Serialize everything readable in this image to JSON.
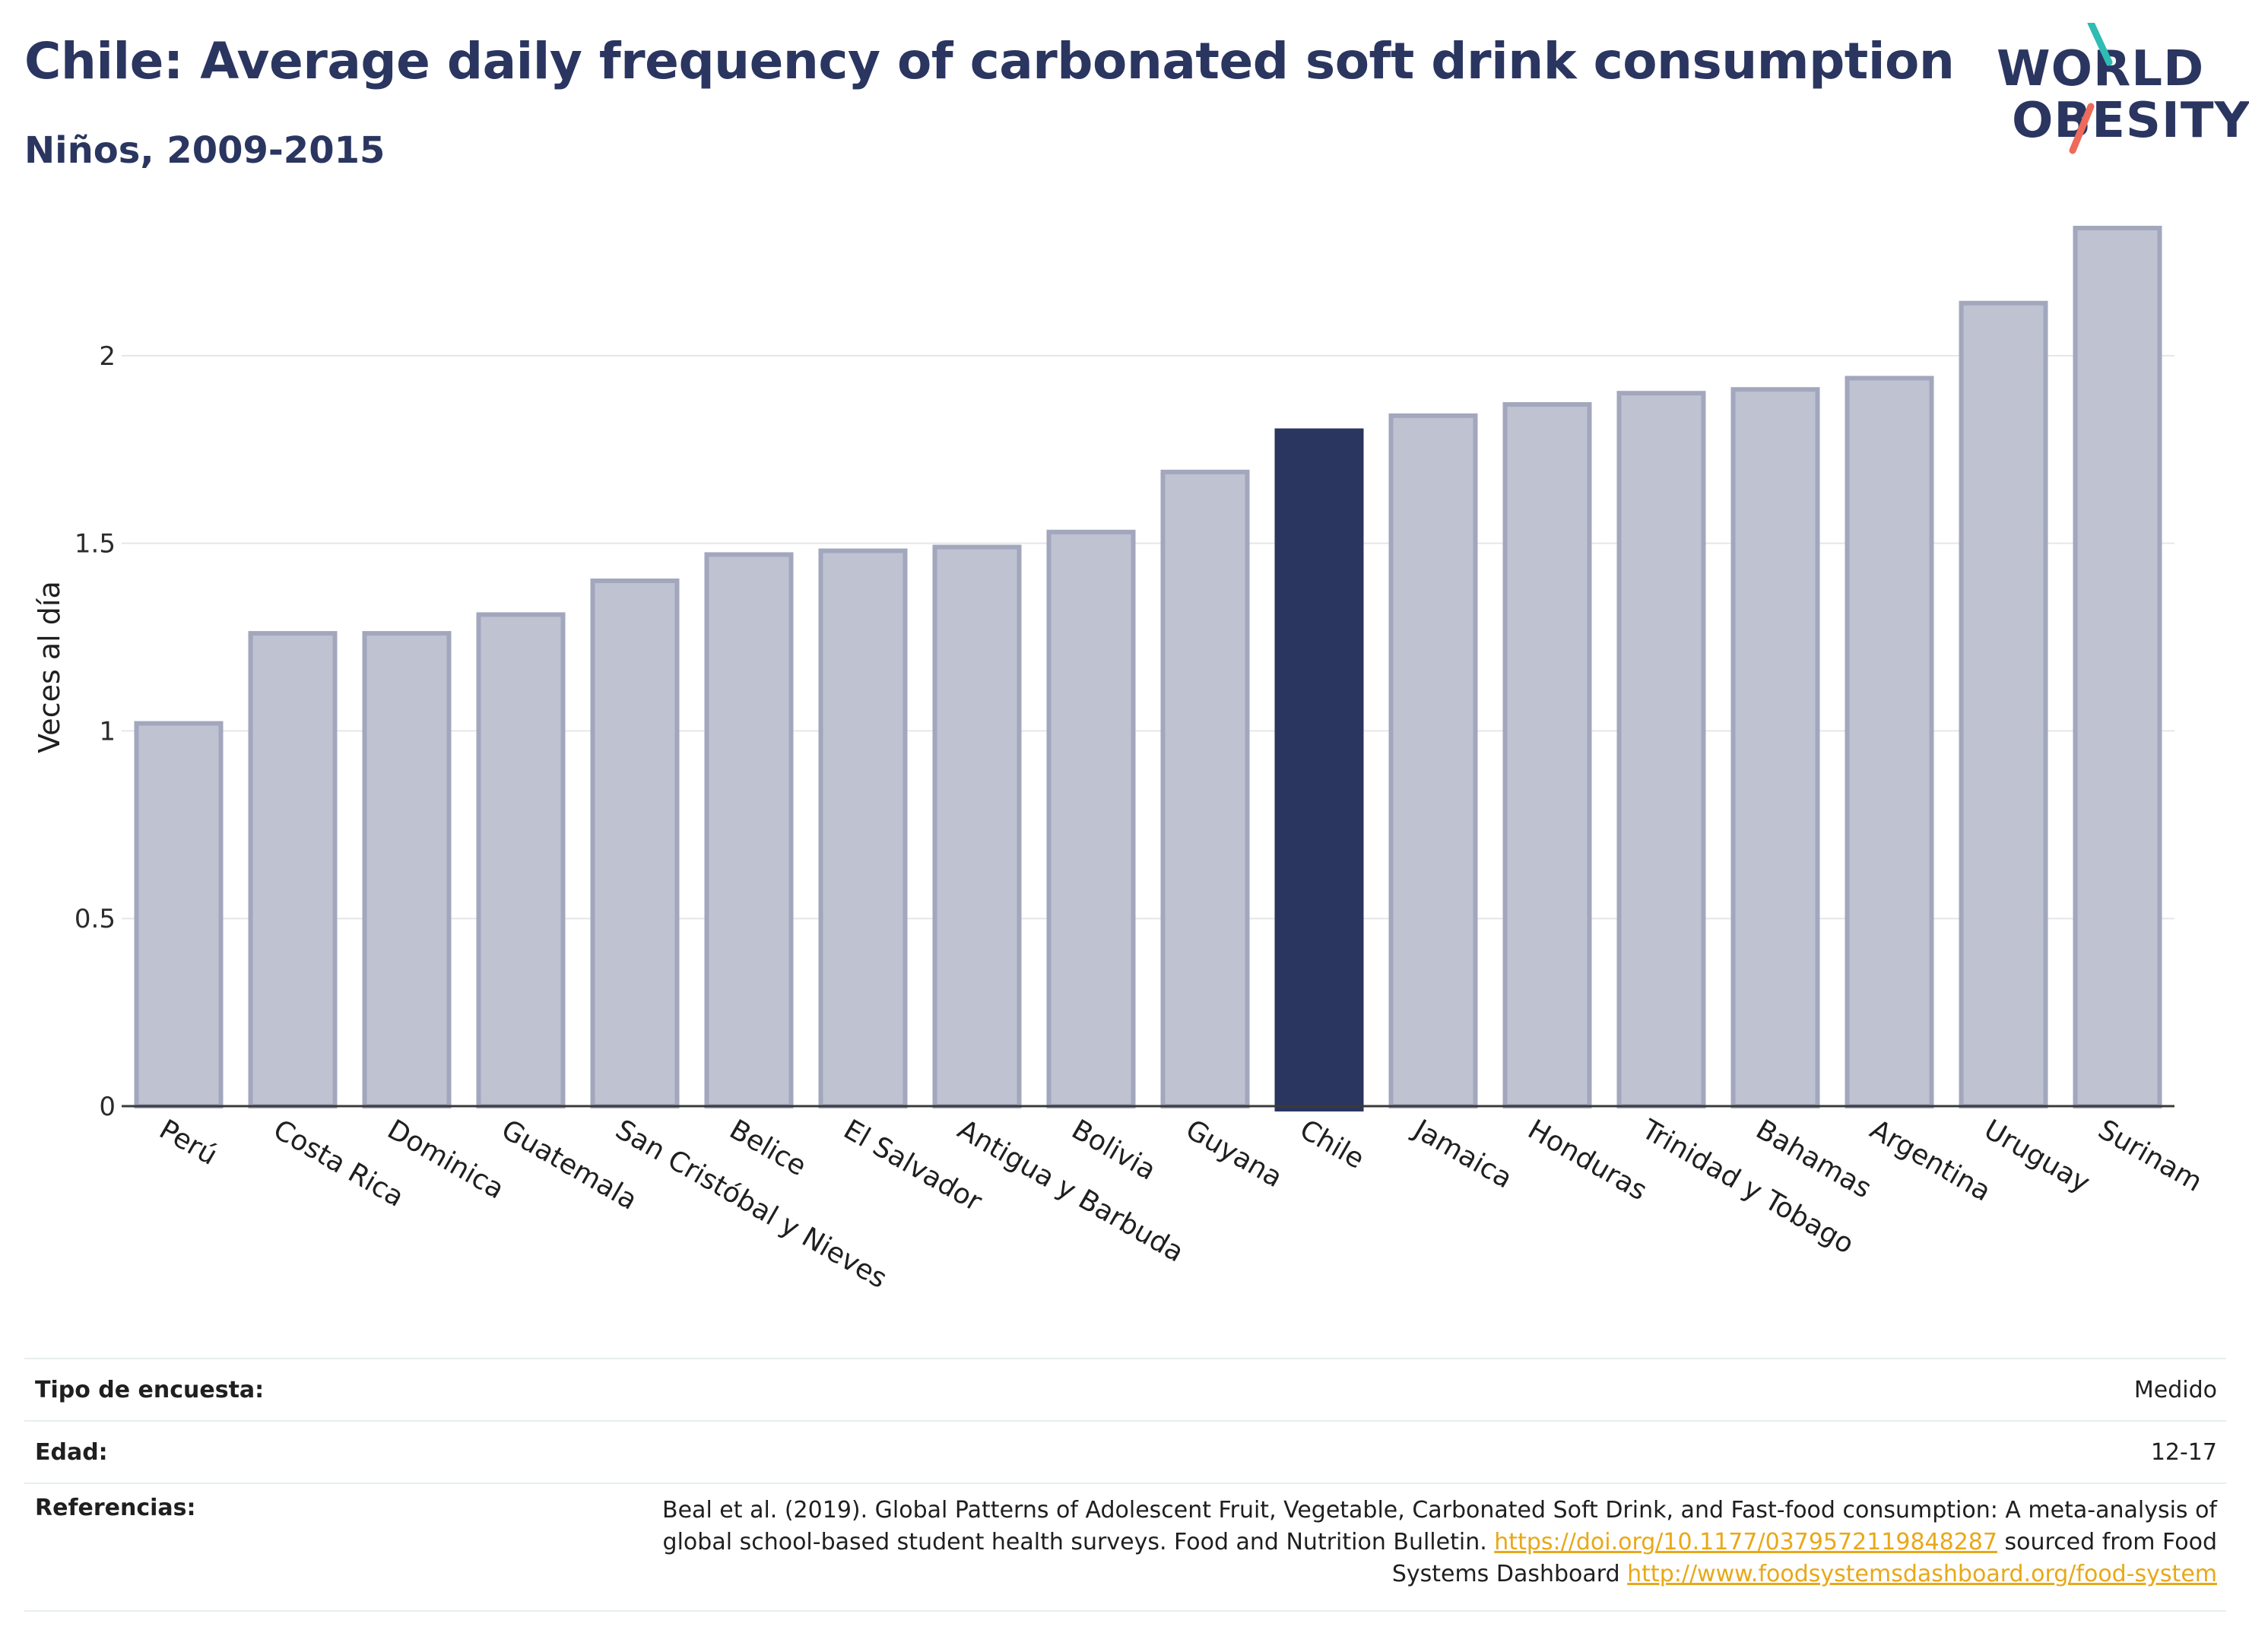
{
  "header": {
    "title": "Chile: Average daily frequency of carbonated soft drink consumption",
    "subtitle": "Niños, 2009-2015"
  },
  "logo": {
    "line1": "WORLD",
    "line2": "OBESITY"
  },
  "colors": {
    "bar": "#bfc2d1",
    "bar_border": "#a2a7bd",
    "highlight": "#2a3560",
    "accent_teal": "#2ebcb4",
    "accent_coral": "#ee6a5a",
    "link": "#e8a817"
  },
  "chart_data": {
    "type": "bar",
    "categories": [
      "Perú",
      "Costa Rica",
      "Dominica",
      "Guatemala",
      "San Cristóbal y Nieves",
      "Belice",
      "El Salvador",
      "Antigua y Barbuda",
      "Bolivia",
      "Guyana",
      "Chile",
      "Jamaica",
      "Honduras",
      "Trinidad y Tobago",
      "Bahamas",
      "Argentina",
      "Uruguay",
      "Surinam"
    ],
    "values": [
      1.02,
      1.26,
      1.26,
      1.31,
      1.4,
      1.47,
      1.48,
      1.49,
      1.53,
      1.69,
      1.8,
      1.84,
      1.87,
      1.9,
      1.91,
      1.94,
      2.14,
      2.34
    ],
    "highlight": "Chile",
    "ylabel": "Veces al día",
    "ylim": [
      0,
      2.34
    ],
    "yticks": [
      0,
      0.5,
      1,
      1.5,
      2
    ],
    "ytick_labels": [
      "0",
      "0.5",
      "1",
      "1.5",
      "2"
    ],
    "grid": true
  },
  "info": {
    "survey_type_label": "Tipo de encuesta:",
    "survey_type_value": "Medido",
    "age_label": "Edad:",
    "age_value": "12-17",
    "references_label": "Referencias:",
    "references_text_1": "Beal et al. (2019). Global Patterns of Adolescent Fruit, Vegetable, Carbonated Soft Drink, and Fast-food consumption: A meta-analysis of global school-based student health surveys. Food and Nutrition Bulletin. ",
    "references_link_1": "https://doi.org/10.1177/0379572119848287",
    "references_text_2": " sourced from Food Systems Dashboard ",
    "references_link_2": "http://www.foodsystemsdashboard.org/food-system"
  }
}
